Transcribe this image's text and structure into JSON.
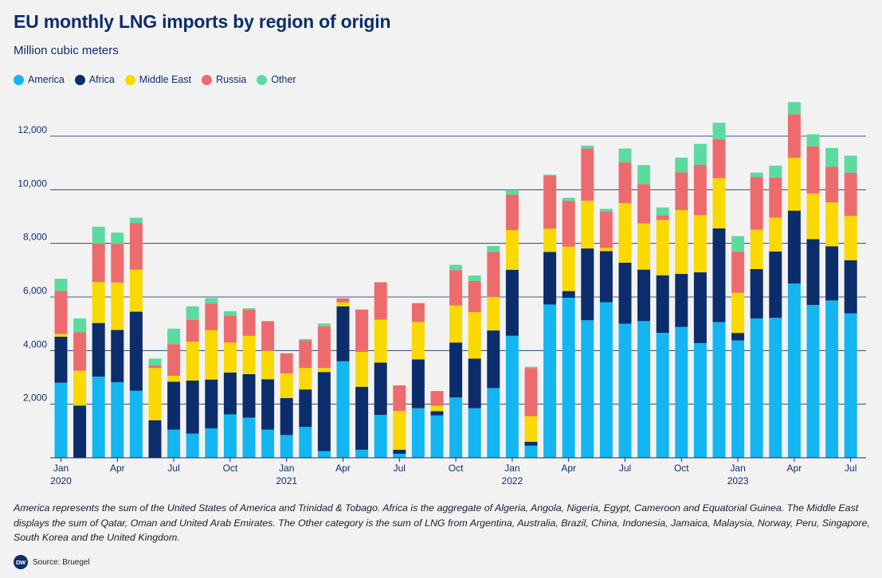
{
  "header": {
    "title": "EU monthly LNG imports by region of origin",
    "subtitle": "Million cubic meters"
  },
  "footer": {
    "note": "America represents the sum of the United States of America and Trinidad & Tobago. Africa is the aggregate of Algeria, Angola, Nigeria, Egypt, Cameroon and Equatorial Guinea. The Middle East displays the sum of Qatar, Oman and United Arab Emirates. The Other category is the sum of LNG from Argentina, Australia, Brazil, China, Indonesia, Jamaica, Malaysia, Norway, Peru, Singapore, South Korea and the United Kingdom.",
    "source": "Source: Bruegel",
    "logo_text": "DW"
  },
  "chart_data": {
    "type": "bar",
    "stacked": true,
    "title": "EU monthly LNG imports by region of origin",
    "ylabel": "Million cubic meters",
    "ylim": [
      0,
      13000
    ],
    "yticks": [
      2000,
      4000,
      6000,
      8000,
      10000,
      12000
    ],
    "ytick_labels": [
      "2,000",
      "4,000",
      "6,000",
      "8,000",
      "10,000",
      "12,000"
    ],
    "grid": "horizontal",
    "legend": "top-left",
    "categories": [
      "2020-01",
      "2020-02",
      "2020-03",
      "2020-04",
      "2020-05",
      "2020-06",
      "2020-07",
      "2020-08",
      "2020-09",
      "2020-10",
      "2020-11",
      "2020-12",
      "2021-01",
      "2021-02",
      "2021-03",
      "2021-04",
      "2021-05",
      "2021-06",
      "2021-07",
      "2021-08",
      "2021-09",
      "2021-10",
      "2021-11",
      "2021-12",
      "2022-01",
      "2022-02",
      "2022-03",
      "2022-04",
      "2022-05",
      "2022-06",
      "2022-07",
      "2022-08",
      "2022-09",
      "2022-10",
      "2022-11",
      "2022-12",
      "2023-01",
      "2023-02",
      "2023-03",
      "2023-04",
      "2023-05",
      "2023-06",
      "2023-07"
    ],
    "x_tick_labels": [
      {
        "index": 0,
        "month": "Jan",
        "year": "2020"
      },
      {
        "index": 3,
        "month": "Apr",
        "year": ""
      },
      {
        "index": 6,
        "month": "Jul",
        "year": ""
      },
      {
        "index": 9,
        "month": "Oct",
        "year": ""
      },
      {
        "index": 12,
        "month": "Jan",
        "year": "2021"
      },
      {
        "index": 15,
        "month": "Apr",
        "year": ""
      },
      {
        "index": 18,
        "month": "Jul",
        "year": ""
      },
      {
        "index": 21,
        "month": "Oct",
        "year": ""
      },
      {
        "index": 24,
        "month": "Jan",
        "year": "2022"
      },
      {
        "index": 27,
        "month": "Apr",
        "year": ""
      },
      {
        "index": 30,
        "month": "Jul",
        "year": ""
      },
      {
        "index": 33,
        "month": "Oct",
        "year": ""
      },
      {
        "index": 36,
        "month": "Jan",
        "year": "2023"
      },
      {
        "index": 39,
        "month": "Apr",
        "year": ""
      },
      {
        "index": 42,
        "month": "Jul",
        "year": ""
      }
    ],
    "series": [
      {
        "name": "America",
        "color": "#13b6f0",
        "values": [
          2800,
          0,
          3030,
          2820,
          2500,
          0,
          1050,
          900,
          1100,
          1620,
          1500,
          1050,
          850,
          1150,
          250,
          3600,
          300,
          1600,
          150,
          1850,
          1580,
          2250,
          1850,
          2600,
          4550,
          450,
          5720,
          5970,
          5130,
          5800,
          5000,
          5100,
          4660,
          4880,
          4280,
          5060,
          4380,
          5200,
          5220,
          6500,
          5700,
          5870,
          5390
        ]
      },
      {
        "name": "Africa",
        "color": "#0c2d6b",
        "values": [
          1720,
          1950,
          2000,
          1950,
          2950,
          1400,
          1790,
          1980,
          1820,
          1560,
          1620,
          1880,
          1380,
          1400,
          2950,
          2050,
          2350,
          1950,
          150,
          1820,
          160,
          2050,
          1850,
          2150,
          2460,
          150,
          1960,
          250,
          2680,
          1910,
          2280,
          1920,
          2150,
          1980,
          2640,
          3500,
          280,
          1840,
          2480,
          2720,
          2460,
          2020,
          1980
        ]
      },
      {
        "name": "Middle East",
        "color": "#f9d900",
        "values": [
          100,
          1300,
          1530,
          1770,
          1570,
          1950,
          220,
          1450,
          1840,
          1120,
          1430,
          1060,
          920,
          800,
          150,
          150,
          1300,
          1600,
          1450,
          1400,
          200,
          1380,
          1730,
          1250,
          1480,
          950,
          870,
          1660,
          1780,
          120,
          2220,
          1720,
          2060,
          2380,
          2130,
          1870,
          1500,
          1470,
          1260,
          1970,
          1700,
          1640,
          1650
        ]
      },
      {
        "name": "Russia",
        "color": "#ee6b6d",
        "values": [
          1600,
          1430,
          1430,
          1440,
          1740,
          100,
          1180,
          820,
          1000,
          1000,
          980,
          1110,
          750,
          1030,
          1560,
          150,
          1580,
          1400,
          950,
          700,
          550,
          1320,
          1170,
          1680,
          1330,
          1800,
          1980,
          1710,
          1950,
          1360,
          1520,
          1470,
          180,
          1410,
          1880,
          1450,
          1540,
          1960,
          1500,
          1630,
          1760,
          1330,
          1620
        ]
      },
      {
        "name": "Other",
        "color": "#5cdba0",
        "values": [
          460,
          520,
          630,
          420,
          200,
          250,
          580,
          500,
          200,
          170,
          50,
          0,
          0,
          50,
          100,
          0,
          0,
          0,
          0,
          0,
          0,
          200,
          200,
          220,
          180,
          50,
          30,
          110,
          110,
          100,
          520,
          710,
          290,
          550,
          780,
          620,
          570,
          170,
          440,
          450,
          450,
          700,
          630
        ]
      }
    ]
  }
}
